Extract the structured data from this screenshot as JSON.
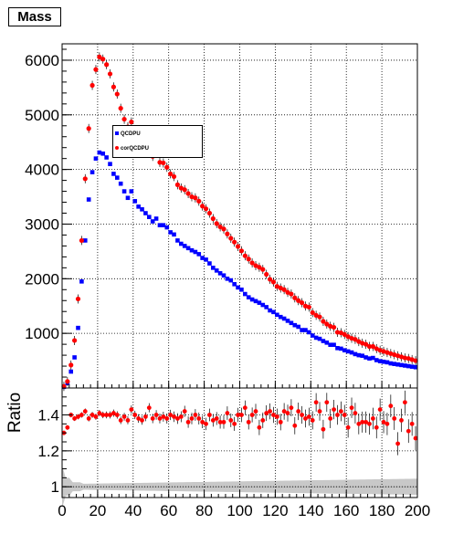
{
  "title": "Mass",
  "chart_data": [
    {
      "type": "scatter",
      "panel": "main",
      "xlim": [
        0,
        200
      ],
      "ylim": [
        0,
        6300
      ],
      "grid": true,
      "legend_position": "upper-middle",
      "y_ticks": [
        "1000",
        "2000",
        "3000",
        "4000",
        "5000",
        "6000"
      ],
      "series": [
        {
          "name": "QCDPU",
          "color": "#0000ff",
          "marker": "square",
          "x": [
            1,
            3,
            5,
            7,
            9,
            11,
            13,
            15,
            17,
            19,
            21,
            23,
            25,
            27,
            29,
            31,
            33,
            35,
            37,
            39,
            41,
            43,
            45,
            47,
            49,
            51,
            53,
            55,
            57,
            59,
            61,
            63,
            65,
            67,
            69,
            71,
            73,
            75,
            77,
            79,
            81,
            83,
            85,
            87,
            89,
            91,
            93,
            95,
            97,
            99,
            101,
            103,
            105,
            107,
            109,
            111,
            113,
            115,
            117,
            119,
            121,
            123,
            125,
            127,
            129,
            131,
            133,
            135,
            137,
            139,
            141,
            143,
            145,
            147,
            149,
            151,
            153,
            155,
            157,
            159,
            161,
            163,
            165,
            167,
            169,
            171,
            173,
            175,
            177,
            179,
            181,
            183,
            185,
            187,
            189,
            191,
            193,
            195,
            197,
            199
          ],
          "y": [
            20,
            90,
            300,
            560,
            1100,
            1950,
            2700,
            3450,
            3950,
            4200,
            4310,
            4290,
            4220,
            4100,
            3920,
            3850,
            3740,
            3600,
            3480,
            3600,
            3420,
            3320,
            3270,
            3200,
            3130,
            3050,
            3100,
            2980,
            2980,
            2940,
            2850,
            2810,
            2700,
            2640,
            2600,
            2560,
            2520,
            2490,
            2450,
            2380,
            2350,
            2280,
            2200,
            2150,
            2100,
            2060,
            2000,
            1970,
            1900,
            1840,
            1800,
            1720,
            1660,
            1620,
            1590,
            1560,
            1520,
            1480,
            1420,
            1390,
            1340,
            1300,
            1270,
            1230,
            1190,
            1150,
            1120,
            1060,
            1060,
            1020,
            960,
            920,
            900,
            860,
            830,
            790,
            790,
            730,
            720,
            690,
            670,
            650,
            620,
            600,
            590,
            560,
            540,
            550,
            510,
            490,
            480,
            470,
            450,
            440,
            430,
            420,
            410,
            400,
            390,
            380
          ]
        },
        {
          "name": "corQCDPU",
          "color": "#ff0000",
          "marker": "circle",
          "x": [
            1,
            3,
            5,
            7,
            9,
            11,
            13,
            15,
            17,
            19,
            21,
            23,
            25,
            27,
            29,
            31,
            33,
            35,
            37,
            39,
            41,
            43,
            45,
            47,
            49,
            51,
            53,
            55,
            57,
            59,
            61,
            63,
            65,
            67,
            69,
            71,
            73,
            75,
            77,
            79,
            81,
            83,
            85,
            87,
            89,
            91,
            93,
            95,
            97,
            99,
            101,
            103,
            105,
            107,
            109,
            111,
            113,
            115,
            117,
            119,
            121,
            123,
            125,
            127,
            129,
            131,
            133,
            135,
            137,
            139,
            141,
            143,
            145,
            147,
            149,
            151,
            153,
            155,
            157,
            159,
            161,
            163,
            165,
            167,
            169,
            171,
            173,
            175,
            177,
            179,
            181,
            183,
            185,
            187,
            189,
            191,
            193,
            195,
            197,
            199
          ],
          "y": [
            30,
            120,
            420,
            870,
            1630,
            2700,
            3830,
            4750,
            5540,
            5830,
            6060,
            6020,
            5920,
            5750,
            5510,
            5380,
            5120,
            4920,
            4780,
            4870,
            4690,
            4570,
            4490,
            4410,
            4320,
            4240,
            4300,
            4130,
            4120,
            4040,
            3920,
            3870,
            3720,
            3660,
            3630,
            3560,
            3500,
            3480,
            3420,
            3330,
            3280,
            3200,
            3100,
            3010,
            2950,
            2910,
            2820,
            2740,
            2670,
            2590,
            2510,
            2420,
            2360,
            2290,
            2240,
            2210,
            2170,
            2080,
            1990,
            1940,
            1860,
            1830,
            1800,
            1750,
            1720,
            1650,
            1600,
            1560,
            1500,
            1480,
            1380,
            1330,
            1300,
            1220,
            1170,
            1130,
            1110,
            1020,
            1010,
            980,
            940,
            910,
            890,
            850,
            820,
            800,
            760,
            760,
            720,
            690,
            670,
            650,
            630,
            610,
            590,
            570,
            550,
            540,
            520,
            500
          ]
        }
      ]
    },
    {
      "type": "scatter",
      "panel": "ratio",
      "ylabel": "Ratio",
      "xlabel": "",
      "xlim": [
        0,
        200
      ],
      "ylim": [
        0.94,
        1.55
      ],
      "grid": true,
      "x_ticks": [
        "0",
        "20",
        "40",
        "60",
        "80",
        "100",
        "120",
        "140",
        "160",
        "180",
        "200"
      ],
      "y_ticks": [
        "1",
        "1.2",
        "1.4"
      ],
      "series": [
        {
          "name": "",
          "color": "#ff0000",
          "marker": "circle",
          "x": [
            1,
            3,
            5,
            7,
            9,
            11,
            13,
            15,
            17,
            19,
            21,
            23,
            25,
            27,
            29,
            31,
            33,
            35,
            37,
            39,
            41,
            43,
            45,
            47,
            49,
            51,
            53,
            55,
            57,
            59,
            61,
            63,
            65,
            67,
            69,
            71,
            73,
            75,
            77,
            79,
            81,
            83,
            85,
            87,
            89,
            91,
            93,
            95,
            97,
            99,
            101,
            103,
            105,
            107,
            109,
            111,
            113,
            115,
            117,
            119,
            121,
            123,
            125,
            127,
            129,
            131,
            133,
            135,
            137,
            139,
            141,
            143,
            145,
            147,
            149,
            151,
            153,
            155,
            157,
            159,
            161,
            163,
            165,
            167,
            169,
            171,
            173,
            175,
            177,
            179,
            181,
            183,
            185,
            187,
            189,
            191,
            193,
            195,
            197,
            199
          ],
          "y": [
            1.3,
            1.33,
            1.4,
            1.38,
            1.39,
            1.4,
            1.42,
            1.38,
            1.4,
            1.39,
            1.41,
            1.4,
            1.4,
            1.4,
            1.41,
            1.4,
            1.37,
            1.39,
            1.37,
            1.43,
            1.4,
            1.38,
            1.37,
            1.39,
            1.44,
            1.38,
            1.4,
            1.38,
            1.39,
            1.38,
            1.4,
            1.39,
            1.38,
            1.39,
            1.42,
            1.36,
            1.38,
            1.4,
            1.38,
            1.36,
            1.35,
            1.4,
            1.37,
            1.38,
            1.36,
            1.36,
            1.41,
            1.37,
            1.35,
            1.4,
            1.4,
            1.44,
            1.36,
            1.4,
            1.42,
            1.33,
            1.37,
            1.41,
            1.42,
            1.4,
            1.39,
            1.36,
            1.42,
            1.41,
            1.44,
            1.34,
            1.42,
            1.4,
            1.38,
            1.39,
            1.37,
            1.47,
            1.42,
            1.32,
            1.47,
            1.38,
            1.43,
            1.4,
            1.42,
            1.4,
            1.33,
            1.44,
            1.41,
            1.35,
            1.36,
            1.36,
            1.35,
            1.38,
            1.33,
            1.43,
            1.36,
            1.35,
            1.45,
            1.38,
            1.24,
            1.37,
            1.47,
            1.31,
            1.35,
            1.27
          ]
        }
      ]
    }
  ]
}
